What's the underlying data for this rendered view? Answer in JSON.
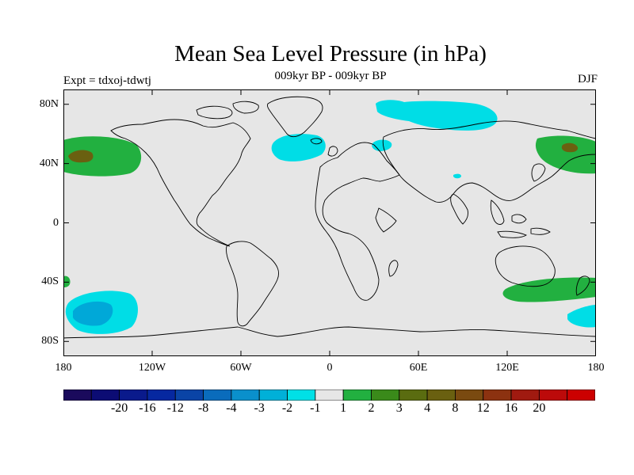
{
  "title": "Mean Sea Level Pressure (in hPa)",
  "subtitle": "009kyr BP - 009kyr BP",
  "experiment_label": "Expt = tdxoj-tdwtj",
  "season": "DJF",
  "axes": {
    "lat_ticks": [
      {
        "value": 80,
        "label": "80N"
      },
      {
        "value": 40,
        "label": "40N"
      },
      {
        "value": 0,
        "label": "0"
      },
      {
        "value": -40,
        "label": "40S"
      },
      {
        "value": -80,
        "label": "80S"
      }
    ],
    "lon_ticks": [
      {
        "value": -180,
        "label": "180"
      },
      {
        "value": -120,
        "label": "120W"
      },
      {
        "value": -60,
        "label": "60W"
      },
      {
        "value": 0,
        "label": "0"
      },
      {
        "value": 60,
        "label": "60E"
      },
      {
        "value": 120,
        "label": "120E"
      },
      {
        "value": 180,
        "label": "180"
      }
    ],
    "lon_range": [
      -180,
      180
    ],
    "lat_range": [
      -90,
      90
    ]
  },
  "colors": {
    "background": "#e6e6e6",
    "coast": "#000000",
    "light_cyan": "#00dde6",
    "mid_cyan": "#00b0d8",
    "dark_cyan": "#0090c8",
    "green": "#22b040",
    "dark_green": "#3a8a1a",
    "olive": "#6a7010",
    "brown": "#7a5a10"
  },
  "colorbar": {
    "colors": [
      "#1a0a5c",
      "#0c0c74",
      "#0a1a8c",
      "#0628a0",
      "#0a44a6",
      "#0a6cbc",
      "#0a90cc",
      "#00b0d8",
      "#00e0e6",
      "#e6e6e6",
      "#22b040",
      "#3a8a1a",
      "#5a6c10",
      "#6a6010",
      "#7a4a10",
      "#8c3210",
      "#a01a10",
      "#bc0a0a",
      "#cc0000"
    ],
    "labels": [
      "-20",
      "-16",
      "-12",
      "-8",
      "-4",
      "-3",
      "-2",
      "-1",
      "1",
      "2",
      "3",
      "4",
      "8",
      "12",
      "16",
      "20"
    ]
  }
}
